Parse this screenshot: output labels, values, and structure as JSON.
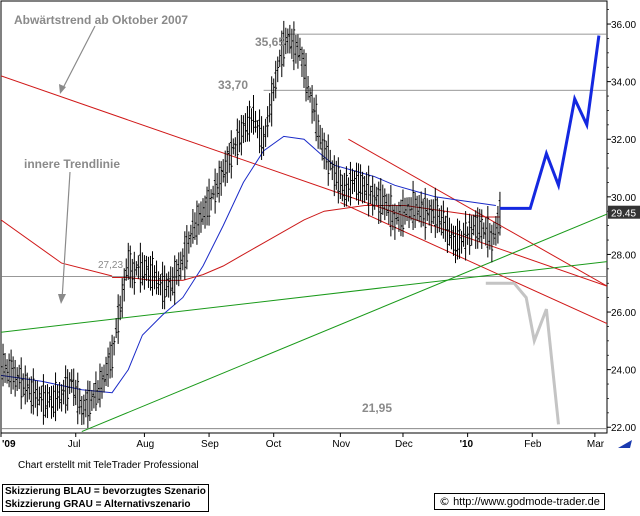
{
  "chart_data": {
    "type": "line",
    "ylim": [
      21.8,
      36.8
    ],
    "x_range": [
      0,
      300
    ],
    "y_ticks": [
      "22.00",
      "24.00",
      "26.00",
      "28.00",
      "30.00",
      "32.00",
      "34.00",
      "36.00"
    ],
    "current_price_label": "29.45",
    "x_ticks": [
      {
        "label": "'09",
        "x": 0
      },
      {
        "label": "Jul",
        "x": 37
      },
      {
        "label": "Aug",
        "x": 71
      },
      {
        "label": "Sep",
        "x": 103
      },
      {
        "label": "Oct",
        "x": 135
      },
      {
        "label": "Nov",
        "x": 168
      },
      {
        "label": "Dec",
        "x": 199
      },
      {
        "label": "'10",
        "x": 231
      },
      {
        "label": "Feb",
        "x": 263
      },
      {
        "label": "Mar",
        "x": 294
      }
    ],
    "annotations": [
      {
        "text": "Abwärtstrend ab Oktober 2007"
      },
      {
        "text": "innere Trendlinie"
      }
    ],
    "levels": [
      {
        "text": "35,65",
        "value": 35.65
      },
      {
        "text": "33,70",
        "value": 33.7
      },
      {
        "text": "27,23",
        "value": 27.23
      },
      {
        "text": "21,95",
        "value": 21.95
      }
    ],
    "price_series": {
      "name": "Kurs",
      "x": [
        0,
        5,
        10,
        15,
        20,
        25,
        30,
        35,
        40,
        45,
        50,
        55,
        58,
        60,
        63,
        65,
        68,
        70,
        75,
        80,
        85,
        90,
        95,
        100,
        105,
        110,
        115,
        120,
        125,
        130,
        135,
        138,
        140,
        142,
        145,
        148,
        150,
        152,
        155,
        158,
        160,
        163,
        165,
        170,
        175,
        180,
        185,
        190,
        195,
        200,
        205,
        210,
        215,
        220,
        225,
        230,
        235,
        240,
        243,
        245,
        247
      ],
      "values": [
        24.1,
        23.9,
        23.6,
        23.2,
        23.0,
        22.9,
        23.1,
        23.6,
        22.6,
        23.0,
        23.5,
        24.5,
        25.8,
        26.5,
        27.8,
        27.3,
        27.6,
        27.5,
        27.3,
        26.9,
        27.0,
        27.8,
        28.9,
        29.4,
        30.1,
        30.8,
        31.7,
        32.3,
        32.8,
        31.9,
        33.7,
        34.8,
        35.3,
        35.5,
        35.2,
        35.0,
        34.5,
        33.8,
        33.0,
        32.0,
        31.6,
        31.2,
        30.8,
        30.2,
        30.6,
        30.3,
        30.0,
        29.8,
        29.2,
        29.5,
        29.6,
        29.5,
        29.4,
        29.0,
        28.4,
        28.6,
        29.0,
        28.8,
        28.5,
        28.8,
        29.45
      ]
    },
    "series": [
      {
        "name": "MA blau",
        "color": "#1a2ac8",
        "x": [
          0,
          20,
          40,
          55,
          63,
          70,
          80,
          90,
          100,
          110,
          120,
          130,
          140,
          150,
          158,
          165,
          175,
          185,
          195,
          205,
          215,
          225,
          235,
          245
        ],
        "values": [
          23.8,
          23.6,
          23.3,
          23.2,
          24.0,
          25.2,
          25.9,
          26.5,
          27.6,
          29.0,
          30.5,
          31.6,
          32.1,
          32.0,
          31.5,
          31.1,
          30.9,
          30.7,
          30.4,
          30.2,
          30.0,
          29.9,
          29.8,
          29.7
        ]
      },
      {
        "name": "MA rot",
        "color": "#cc1a1a",
        "x": [
          55,
          63,
          75,
          90,
          100,
          110,
          120,
          130,
          140,
          150,
          160,
          170,
          180,
          190,
          200,
          210,
          220,
          230,
          240,
          247
        ],
        "values": [
          27.2,
          27.2,
          27.1,
          27.1,
          27.3,
          27.6,
          28.0,
          28.4,
          28.8,
          29.2,
          29.5,
          29.6,
          29.7,
          29.7,
          29.7,
          29.6,
          29.5,
          29.4,
          29.3,
          29.3
        ]
      }
    ],
    "trendlines": [
      {
        "color": "#d01818",
        "points": [
          [
            0,
            34.2
          ],
          [
            300,
            26.9
          ]
        ]
      },
      {
        "color": "#d01818",
        "points": [
          [
            0,
            29.2
          ],
          [
            30,
            27.7
          ],
          [
            55,
            27.25
          ]
        ]
      },
      {
        "color": "#d01818",
        "points": [
          [
            172,
            32.0
          ],
          [
            300,
            26.9
          ]
        ]
      },
      {
        "color": "#d01818",
        "points": [
          [
            168,
            29.8
          ],
          [
            300,
            25.6
          ]
        ]
      },
      {
        "color": "#1a9a1a",
        "points": [
          [
            0,
            25.3
          ],
          [
            300,
            27.75
          ]
        ]
      },
      {
        "color": "#1a9a1a",
        "points": [
          [
            40,
            21.85
          ],
          [
            300,
            29.4
          ]
        ]
      }
    ],
    "horizontal_lines": [
      33.7,
      35.65,
      27.23,
      21.95
    ],
    "scenario_blue": {
      "x": [
        247,
        255,
        262,
        270,
        276,
        284,
        290,
        296
      ],
      "values": [
        29.6,
        29.6,
        29.6,
        31.5,
        30.4,
        33.4,
        32.5,
        35.6
      ]
    },
    "scenario_grey": {
      "x": [
        240,
        254,
        260,
        264,
        270,
        276
      ],
      "values": [
        27.0,
        27.0,
        26.5,
        25.0,
        26.1,
        22.1
      ]
    }
  },
  "footer": {
    "credit": "Chart erstellt mit TeleTrader Professional",
    "note_blue": "Skizzierung BLAU = bevorzugtes Szenario",
    "note_grey": "Skizzierung GRAU = Alternativszenario",
    "copyright_symbol": "©",
    "url": "http://www.godmode-trader.de"
  }
}
